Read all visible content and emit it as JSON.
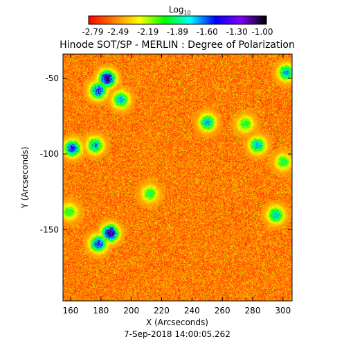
{
  "chart_data": {
    "type": "heatmap",
    "title": "Hinode SOT/SP - MERLIN : Degree of Polarization",
    "colorbar_label_base": "Log",
    "colorbar_label_sub": "10",
    "colorbar_ticks": [
      "-2.79",
      "-2.49",
      "-2.19",
      "-1.89",
      "-1.60",
      "-1.30",
      "-1.00"
    ],
    "colorbar_range": [
      -2.79,
      -1.0
    ],
    "colormap": [
      "#ff0000",
      "#ff8000",
      "#ffff00",
      "#00ff00",
      "#00ffff",
      "#0000ff",
      "#8000ff",
      "#000000"
    ],
    "xlabel": "X (Arcseconds)",
    "ylabel": "Y (Arcseconds)",
    "xlim": [
      155,
      306
    ],
    "ylim": [
      -197,
      -34
    ],
    "xticks": [
      160,
      180,
      200,
      220,
      240,
      260,
      280,
      300
    ],
    "yticks": [
      -50,
      -100,
      -150
    ],
    "footer": "7-Sep-2018 14:00:05.262",
    "background_value": -2.55,
    "active_regions": [
      {
        "x": 184,
        "y": -50,
        "value": -1.0
      },
      {
        "x": 178,
        "y": -58,
        "value": -1.3
      },
      {
        "x": 193,
        "y": -64,
        "value": -1.6
      },
      {
        "x": 186,
        "y": -152,
        "value": -1.0
      },
      {
        "x": 178,
        "y": -159,
        "value": -1.3
      },
      {
        "x": 161,
        "y": -96,
        "value": -1.3
      },
      {
        "x": 176,
        "y": -94,
        "value": -1.6
      },
      {
        "x": 212,
        "y": -126,
        "value": -1.9
      },
      {
        "x": 250,
        "y": -79,
        "value": -1.6
      },
      {
        "x": 275,
        "y": -80,
        "value": -1.9
      },
      {
        "x": 283,
        "y": -94,
        "value": -1.6
      },
      {
        "x": 295,
        "y": -140,
        "value": -1.6
      },
      {
        "x": 300,
        "y": -105,
        "value": -1.9
      },
      {
        "x": 302,
        "y": -46,
        "value": -1.6
      },
      {
        "x": 159,
        "y": -138,
        "value": -1.9
      }
    ]
  }
}
